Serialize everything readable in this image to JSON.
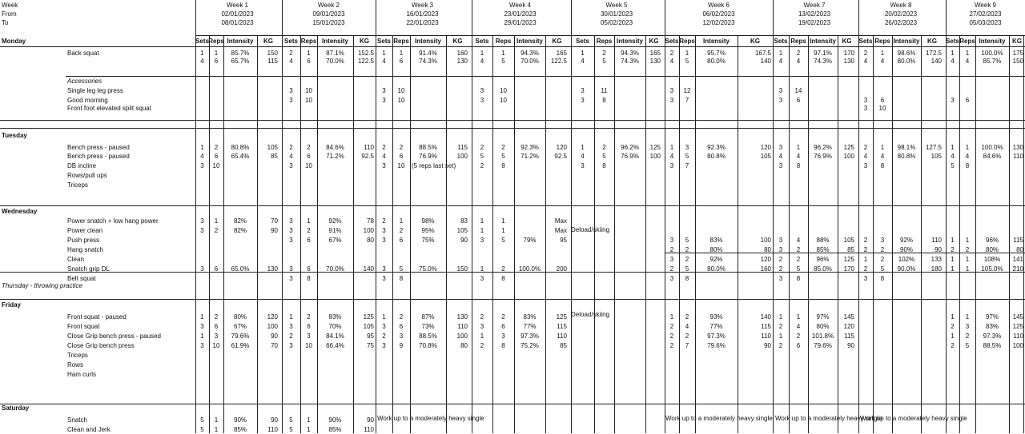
{
  "header": {
    "week": "Week",
    "from": "From",
    "to": "To"
  },
  "colheads": {
    "sets": "Sets",
    "reps": "Reps",
    "intensity": "Intensity",
    "kg": "KG"
  },
  "weeks": [
    {
      "name": "Week 1",
      "from": "02/01/2023",
      "to": "08/01/2023"
    },
    {
      "name": "Week 2",
      "from": "09/01/2023",
      "to": "15/01/2023"
    },
    {
      "name": "Week 3",
      "from": "16/01/2023",
      "to": "22/01/2023"
    },
    {
      "name": "Week 4",
      "from": "23/01/2023",
      "to": "29/01/2023"
    },
    {
      "name": "Week 5",
      "from": "30/01/2023",
      "to": "05/02/2023"
    },
    {
      "name": "Week 6",
      "from": "06/02/2023",
      "to": "12/02/2023"
    },
    {
      "name": "Week 7",
      "from": "13/02/2023",
      "to": "19/02/2023"
    },
    {
      "name": "Week 8",
      "from": "20/02/2023",
      "to": "26/02/2023"
    },
    {
      "name": "Week 9",
      "from": "27/02/2023",
      "to": "05/03/2023"
    }
  ],
  "days": {
    "monday": "Monday",
    "tuesday": "Tuesday",
    "wednesday": "Wednesday",
    "thursday": "Thursday - throwing practice",
    "friday": "Friday",
    "saturday": "Saturday"
  },
  "exercises": [
    "Back squat",
    "Accessories",
    "Single leg leg press",
    "Good morning",
    "Front foot elevated split squat",
    "Bench press - paused",
    "Bench press - paused",
    "DB incline",
    "Rows/pull ups",
    "Triceps",
    "Power snatch + low hang power",
    "Power clean",
    "Push press",
    "Hang snatch",
    "Clean",
    "Snatch grip DL",
    "Belt squat",
    "Front squat -  paused",
    "Front squat",
    "Close Grip bench press - paused",
    "Close Grip bench press",
    "Triceps",
    "Rows",
    "Ham curls",
    "Snatch",
    "Clean and Jerk"
  ],
  "rows": {
    "backsquat": [
      [
        "1",
        "1",
        "85.7%",
        "150",
        "2",
        "1",
        "87.1%",
        "152.5",
        "1",
        "1",
        "91.4%",
        "160",
        "1",
        "1",
        "94.3%",
        "165",
        "1",
        "2",
        "94.3%",
        "165",
        "2",
        "1",
        "95.7%",
        "167.5",
        "1",
        "2",
        "97.1%",
        "170",
        "2",
        "1",
        "98.6%",
        "172.5",
        "1",
        "1",
        "100.0%",
        "175"
      ],
      [
        "4",
        "6",
        "65.7%",
        "115",
        "4",
        "6",
        "70.0%",
        "122.5",
        "4",
        "6",
        "74.3%",
        "130",
        "4",
        "5",
        "70.0%",
        "122.5",
        "4",
        "5",
        "74.3%",
        "130",
        "4",
        "5",
        "80.0%",
        "140",
        "4",
        "4",
        "74.3%",
        "130",
        "4",
        "4",
        "80.0%",
        "140",
        "4",
        "4",
        "85.7%",
        "150"
      ]
    ],
    "legpress": [
      "",
      "",
      "",
      "",
      "3",
      "10",
      "",
      "",
      "3",
      "10",
      "",
      "",
      "3",
      "10",
      "",
      "",
      "3",
      "11",
      "",
      "",
      "3",
      "12",
      "",
      "",
      "3",
      "14",
      "",
      "",
      "",
      "",
      "",
      "",
      "",
      "",
      "",
      ""
    ],
    "goodmorning": [
      "",
      "",
      "",
      "",
      "3",
      "10",
      "",
      "",
      "3",
      "10",
      "",
      "",
      "3",
      "10",
      "",
      "",
      "3",
      "8",
      "",
      "",
      "3",
      "7",
      "",
      "",
      "3",
      "6",
      "",
      "",
      "3",
      "6",
      "",
      "",
      "3",
      "6",
      "",
      ""
    ],
    "splitsquat": [
      "",
      "",
      "",
      "",
      "",
      "",
      "",
      "",
      "",
      "",
      "",
      "",
      "",
      "",
      "",
      "",
      "",
      "",
      "",
      "",
      "",
      "",
      "",
      "",
      "",
      "",
      "",
      "",
      "3",
      "10",
      "",
      "",
      "",
      "",
      "",
      ""
    ],
    "bench1": [
      "1",
      "2",
      "80.8%",
      "105",
      "2",
      "2",
      "84.6%",
      "110",
      "2",
      "2",
      "88.5%",
      "115",
      "2",
      "2",
      "92.3%",
      "120",
      "1",
      "2",
      "96.2%",
      "125",
      "1",
      "3",
      "92.3%",
      "120",
      "3",
      "1",
      "96.2%",
      "125",
      "2",
      "1",
      "98.1%",
      "127.5",
      "1",
      "1",
      "100.0%",
      "130"
    ],
    "bench2": [
      "4",
      "6",
      "65.4%",
      "85",
      "4",
      "6",
      "71.2%",
      "92.5",
      "4",
      "6",
      "76.9%",
      "100",
      "5",
      "5",
      "71.2%",
      "92.5",
      "4",
      "5",
      "76.9%",
      "100",
      "4",
      "5",
      "80.8%",
      "105",
      "4",
      "4",
      "76.9%",
      "100",
      "4",
      "4",
      "80.8%",
      "105",
      "4",
      "4",
      "84.6%",
      "110"
    ],
    "dbincline": [
      "3",
      "10",
      "",
      "",
      "3",
      "10",
      "",
      "",
      "3",
      "10",
      "(5 reps last set)",
      "",
      "2",
      "8",
      "",
      "",
      "3",
      "8",
      "",
      "",
      "3",
      "7",
      "",
      "",
      "3",
      "8",
      "",
      "",
      "3",
      "8",
      "",
      "",
      "5",
      "8",
      "",
      ""
    ],
    "powersnatch": [
      "3",
      "1",
      "82%",
      "70",
      "3",
      "1",
      "92%",
      "78",
      "2",
      "1",
      "98%",
      "83",
      "1",
      "1",
      "",
      "Max",
      "",
      "",
      "",
      "",
      "",
      "",
      "",
      "",
      "",
      "",
      "",
      "",
      "",
      "",
      "",
      "",
      "",
      "",
      "",
      ""
    ],
    "powerclean": [
      "3",
      "2",
      "82%",
      "90",
      "3",
      "2",
      "91%",
      "100",
      "3",
      "2",
      "95%",
      "105",
      "1",
      "1",
      "",
      "Max",
      "",
      "",
      "",
      "",
      "",
      "",
      "",
      "",
      "",
      "",
      "",
      "",
      "",
      "",
      "",
      "",
      "",
      "",
      "",
      ""
    ],
    "pushpress": [
      "",
      "",
      "",
      "",
      "3",
      "6",
      "67%",
      "80",
      "3",
      "6",
      "75%",
      "90",
      "3",
      "5",
      "79%",
      "95",
      "",
      "",
      "",
      "",
      "3",
      "5",
      "83%",
      "100",
      "3",
      "4",
      "88%",
      "105",
      "2",
      "3",
      "92%",
      "110",
      "1",
      "1",
      "96%",
      "115"
    ],
    "hangsnatch": [
      "",
      "",
      "",
      "",
      "",
      "",
      "",
      "",
      "",
      "",
      "",
      "",
      "",
      "",
      "",
      "",
      "",
      "",
      "",
      "",
      "2",
      "2",
      "80%",
      "80",
      "3",
      "2",
      "85%",
      "85",
      "2",
      "2",
      "90%",
      "90",
      "2",
      "2",
      "80%",
      "80"
    ],
    "clean": [
      "",
      "",
      "",
      "",
      "",
      "",
      "",
      "",
      "",
      "",
      "",
      "",
      "",
      "",
      "",
      "",
      "",
      "",
      "",
      "",
      "3",
      "2",
      "92%",
      "120",
      "2",
      "2",
      "96%",
      "125",
      "1",
      "2",
      "102%",
      "133",
      "1",
      "1",
      "108%",
      "141"
    ],
    "snatchdl": [
      "3",
      "6",
      "65.0%",
      "130",
      "3",
      "6",
      "70.0%",
      "140",
      "3",
      "5",
      "75.0%",
      "150",
      "1",
      "2",
      "100.0%",
      "200",
      "",
      "",
      "",
      "",
      "2",
      "5",
      "80.0%",
      "160",
      "2",
      "5",
      "85.0%",
      "170",
      "2",
      "5",
      "90.0%",
      "180",
      "1",
      "1",
      "105.0%",
      "210"
    ],
    "beltsquat": [
      "",
      "",
      "",
      "",
      "3",
      "8",
      "",
      "",
      "3",
      "8",
      "",
      "",
      "3",
      "8",
      "",
      "",
      "",
      "",
      "",
      "",
      "3",
      "8",
      "",
      "",
      "3",
      "8",
      "",
      "",
      "3",
      "8",
      "",
      "",
      "",
      "",
      "",
      ""
    ],
    "frontpaused": [
      "1",
      "2",
      "80%",
      "120",
      "1",
      "2",
      "83%",
      "125",
      "1",
      "2",
      "87%",
      "130",
      "2",
      "2",
      "83%",
      "125",
      "",
      "",
      "",
      "",
      "1",
      "2",
      "93%",
      "140",
      "1",
      "1",
      "97%",
      "145",
      "",
      "",
      "",
      "",
      "1",
      "1",
      "97%",
      "145"
    ],
    "frontsquat": [
      "3",
      "6",
      "67%",
      "100",
      "3",
      "6",
      "70%",
      "105",
      "3",
      "6",
      "73%",
      "110",
      "3",
      "6",
      "77%",
      "115",
      "",
      "",
      "",
      "",
      "2",
      "4",
      "77%",
      "115",
      "2",
      "4",
      "80%",
      "120",
      "",
      "",
      "",
      "",
      "2",
      "3",
      "83%",
      "125"
    ],
    "cgpaused": [
      "1",
      "3",
      "79.6%",
      "90",
      "2",
      "3",
      "84.1%",
      "95",
      "2",
      "3",
      "88.5%",
      "100",
      "1",
      "3",
      "97.3%",
      "110",
      "",
      "",
      "",
      "",
      "2",
      "2",
      "97.3%",
      "110",
      "1",
      "2",
      "101.8%",
      "115",
      "",
      "",
      "",
      "",
      "1",
      "2",
      "97.3%",
      "110"
    ],
    "cgbench": [
      "3",
      "10",
      "61.9%",
      "70",
      "3",
      "10",
      "66.4%",
      "75",
      "3",
      "9",
      "70.8%",
      "80",
      "2",
      "8",
      "75.2%",
      "85",
      "",
      "",
      "",
      "",
      "2",
      "7",
      "79.6%",
      "90",
      "2",
      "6",
      "79.6%",
      "90",
      "",
      "",
      "",
      "",
      "2",
      "5",
      "88.5%",
      "100"
    ],
    "snatch": [
      "5",
      "1",
      "90%",
      "90",
      "5",
      "1",
      "90%",
      "90",
      "",
      "",
      "",
      "",
      "",
      "",
      "",
      "",
      "",
      "",
      "",
      "",
      "",
      "",
      "",
      "",
      "",
      "",
      "",
      "",
      "",
      "",
      "",
      "",
      "",
      "",
      "",
      ""
    ],
    "cleanjerk": [
      "5",
      "1",
      "85%",
      "110",
      "5",
      "1",
      "85%",
      "110",
      "",
      "",
      "",
      "",
      "",
      "",
      "",
      "",
      "",
      "",
      "",
      "",
      "",
      "",
      "",
      "",
      "",
      "",
      "",
      "",
      "",
      "",
      "",
      "",
      "",
      "",
      "",
      ""
    ]
  },
  "notes": {
    "deload": "Deload/skiing",
    "workup": "Work up to a moderately heavy single"
  }
}
